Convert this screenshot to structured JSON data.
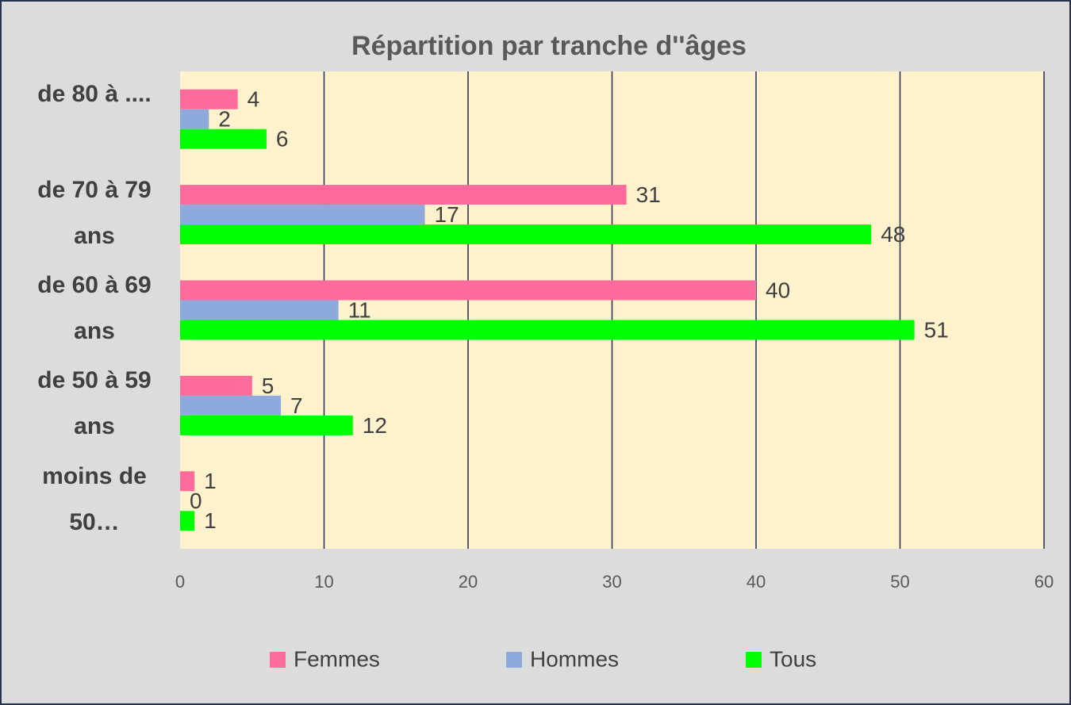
{
  "chart_data": {
    "type": "bar",
    "orientation": "horizontal",
    "title": "Répartition par tranche d''âges",
    "categories": [
      "de 80 à ....",
      "de 70 à 79 ans",
      "de 60 à 69 ans",
      "de 50 à 59 ans",
      "moins de 50…"
    ],
    "series": [
      {
        "name": "Femmes",
        "color": "#ff6b9a",
        "values": [
          4,
          31,
          40,
          5,
          1
        ]
      },
      {
        "name": "Hommes",
        "color": "#8eaadc",
        "values": [
          2,
          17,
          11,
          7,
          0
        ]
      },
      {
        "name": "Tous",
        "color": "#00ff00",
        "values": [
          6,
          48,
          51,
          12,
          1
        ]
      }
    ],
    "xlim": [
      0,
      60
    ],
    "xticks": [
      0,
      10,
      20,
      30,
      40,
      50,
      60
    ],
    "grid": true,
    "legend": "bottom"
  }
}
